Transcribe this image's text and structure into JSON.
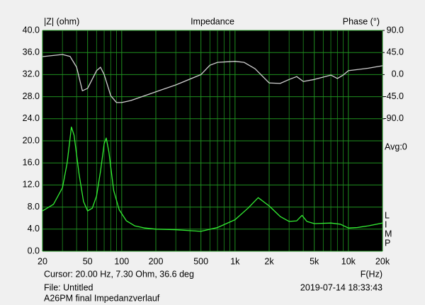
{
  "chart_data": {
    "type": "line",
    "title": "Impedance",
    "y_label": "|Z| (ohm)",
    "y2_label": "Phase (°)",
    "x_label": "F(Hz)",
    "side_labels": [
      "Avg:0",
      "L",
      "I",
      "M",
      "P"
    ],
    "status": {
      "cursor": "Cursor: 20.00 Hz, 7.30 Ohm, 36.6 deg",
      "file": "File: Untitled",
      "timestamp": "2019-07-14 18:33:43",
      "description": "A26PM final Impedanzverlauf"
    },
    "x_scale": "log",
    "xlim": [
      20,
      20000
    ],
    "xticks": [
      20,
      50,
      100,
      200,
      500,
      {
        "value": 1000,
        "label": "1k"
      },
      {
        "value": 2000,
        "label": "2k"
      },
      {
        "value": 5000,
        "label": "5k"
      },
      {
        "value": 10000,
        "label": "10k"
      },
      {
        "value": 20000,
        "label": "20k"
      }
    ],
    "xgrid": [
      30,
      40,
      60,
      70,
      80,
      90,
      300,
      400,
      600,
      700,
      800,
      900,
      3000,
      4000,
      6000,
      7000,
      8000,
      9000
    ],
    "ylim": [
      0,
      40
    ],
    "yticks": [
      {
        "value": 0,
        "label": "0.0"
      },
      {
        "value": 4,
        "label": "4.0"
      },
      {
        "value": 8,
        "label": "8.0"
      },
      {
        "value": 12,
        "label": "12.0"
      },
      {
        "value": 16,
        "label": "16.0"
      },
      {
        "value": 20,
        "label": "20.0"
      },
      {
        "value": 24,
        "label": "24.0"
      },
      {
        "value": 28,
        "label": "28.0"
      },
      {
        "value": 32,
        "label": "32.0"
      },
      {
        "value": 36,
        "label": "36.0"
      },
      {
        "value": 40,
        "label": "40.0"
      }
    ],
    "y2lim": [
      -360,
      90
    ],
    "y2ticks": [
      {
        "value": 90,
        "label": "90.0"
      },
      {
        "value": 45,
        "label": "45.0"
      },
      {
        "value": 0,
        "label": "0.0"
      },
      {
        "value": -45,
        "label": "-45.0"
      },
      {
        "value": -90,
        "label": "-90.0"
      }
    ],
    "grid": true,
    "grid_color": "#1f8f1f",
    "plot_background": "#000000",
    "series": [
      {
        "name": "Impedance",
        "color": "#33ee33",
        "x": [
          20,
          25,
          30,
          33,
          36,
          38,
          42,
          46,
          50,
          55,
          60,
          65,
          70,
          73,
          77,
          85,
          95,
          110,
          130,
          160,
          200,
          300,
          500,
          700,
          1000,
          1300,
          1600,
          2000,
          2500,
          3000,
          3500,
          3900,
          4300,
          5000,
          7000,
          8500,
          10000,
          12000,
          15000,
          20000
        ],
        "values": [
          7.3,
          8.5,
          11.5,
          16,
          22.5,
          21,
          14,
          9,
          7.3,
          7.8,
          10,
          14.5,
          19.5,
          20.5,
          18,
          11,
          7.5,
          5.5,
          4.6,
          4.2,
          4.0,
          3.9,
          3.6,
          4.3,
          5.7,
          7.8,
          9.7,
          8.2,
          6.3,
          5.4,
          5.5,
          6.5,
          5.4,
          5.0,
          5.1,
          4.9,
          4.2,
          4.3,
          4.6,
          5.1
        ]
      },
      {
        "name": "Phase",
        "color": "#d0d0d0",
        "axis": "y2",
        "x": [
          20,
          30,
          35,
          40,
          45,
          50,
          60,
          65,
          70,
          80,
          90,
          100,
          120,
          200,
          300,
          500,
          600,
          700,
          1000,
          1200,
          1500,
          2000,
          2500,
          3000,
          3500,
          4000,
          5000,
          7000,
          8000,
          9000,
          10000,
          15000,
          20000
        ],
        "values": [
          36.6,
          41,
          37,
          15,
          -33,
          -28,
          8,
          15,
          0,
          -43,
          -57,
          -57,
          -53,
          -35,
          -21,
          0,
          19,
          25,
          27,
          25,
          12,
          -17,
          -18,
          -10,
          -4,
          -14,
          -10,
          -1,
          -8,
          -1,
          8,
          13,
          18
        ]
      }
    ]
  }
}
